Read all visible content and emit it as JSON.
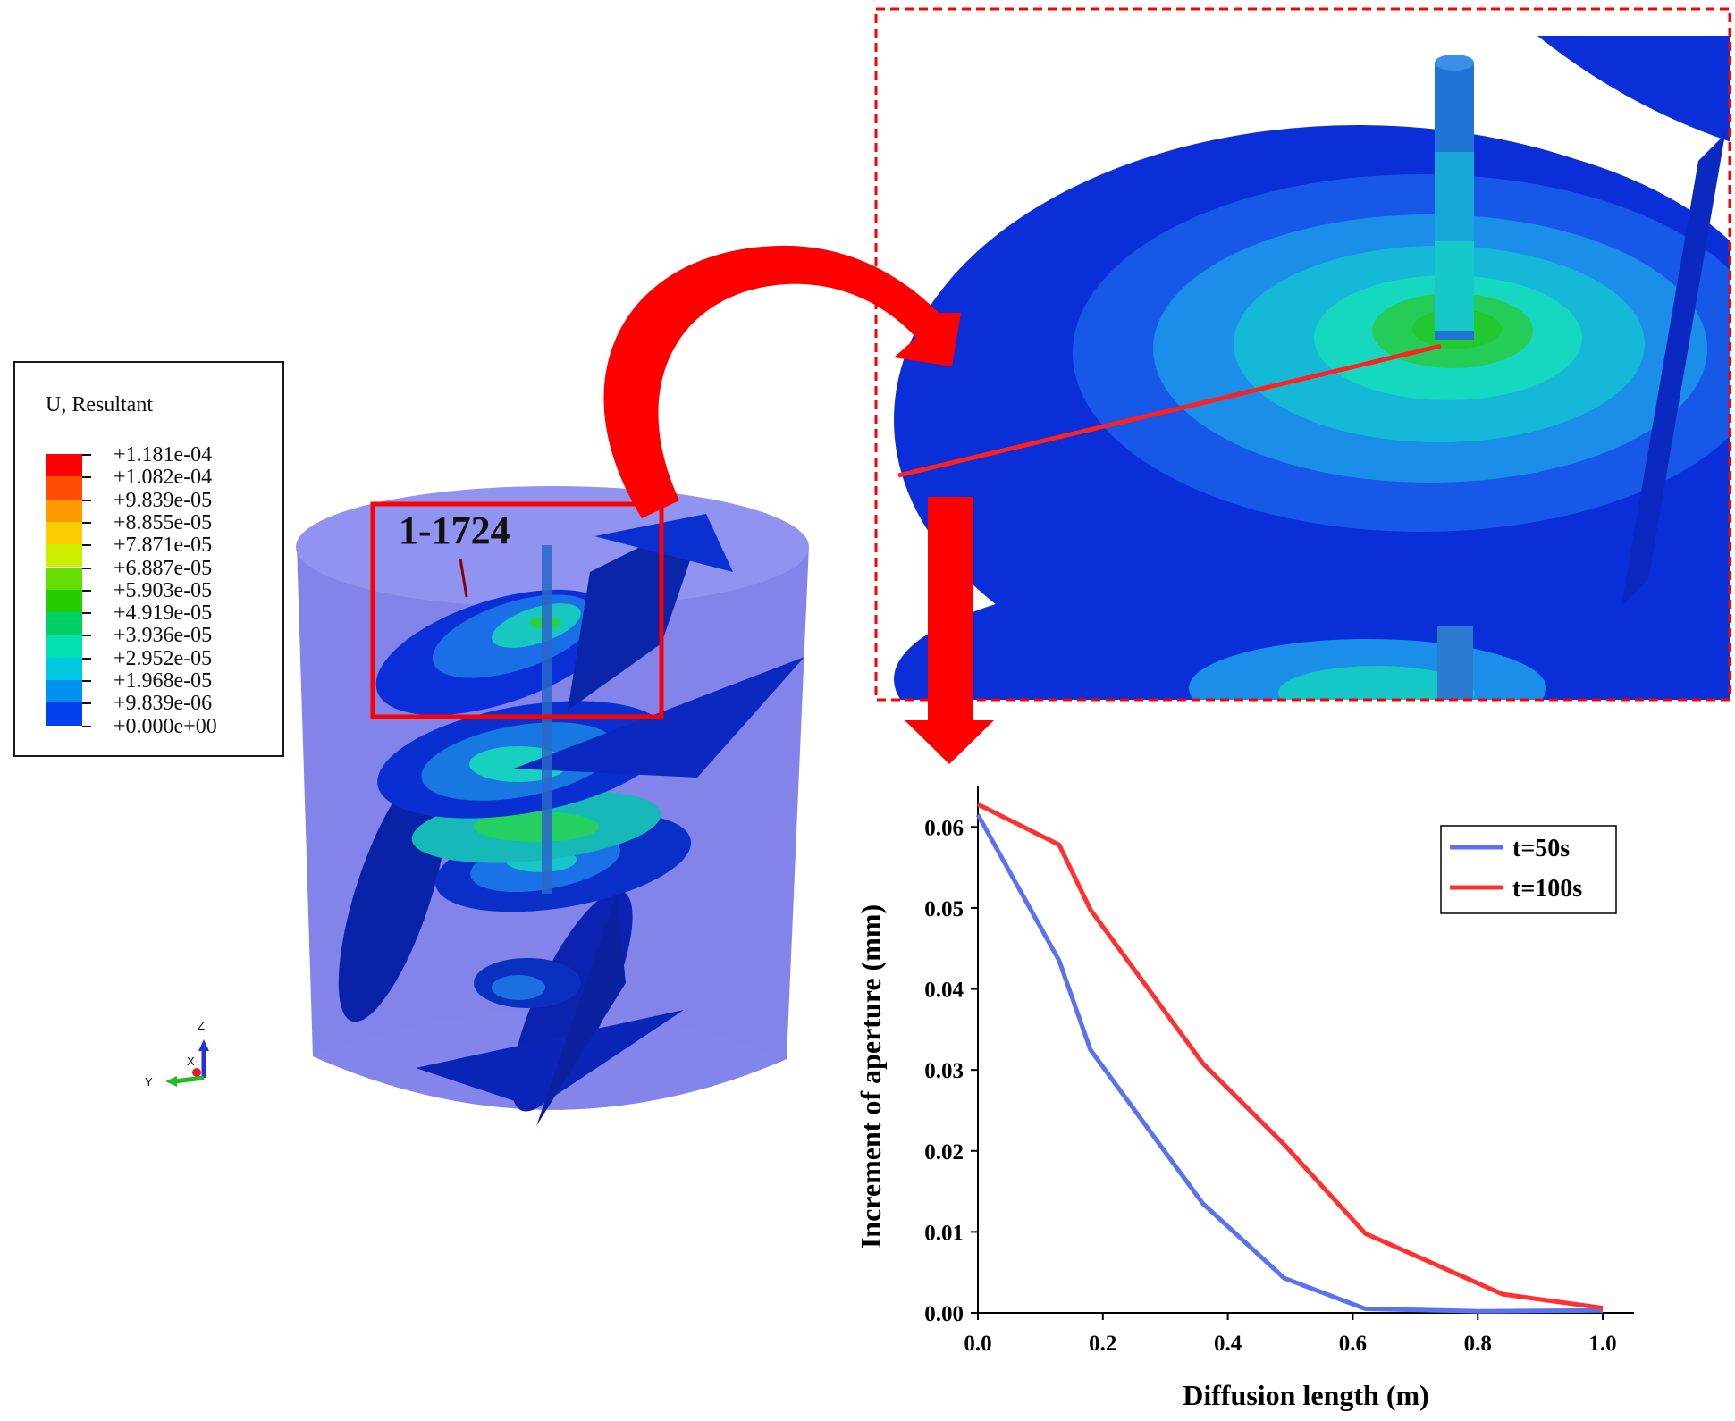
{
  "contour_legend": {
    "title": "U, Resultant",
    "levels": [
      {
        "value": "+1.181e-04",
        "color": "#ff0000"
      },
      {
        "value": "+1.082e-04",
        "color": "#ff4d00"
      },
      {
        "value": "+9.839e-05",
        "color": "#ff9900"
      },
      {
        "value": "+8.855e-05",
        "color": "#ffcc00"
      },
      {
        "value": "+7.871e-05",
        "color": "#ccee00"
      },
      {
        "value": "+6.887e-05",
        "color": "#66dd00"
      },
      {
        "value": "+5.903e-05",
        "color": "#22cc00"
      },
      {
        "value": "+4.919e-05",
        "color": "#00d060"
      },
      {
        "value": "+3.936e-05",
        "color": "#00e0b0"
      },
      {
        "value": "+2.952e-05",
        "color": "#00c8e0"
      },
      {
        "value": "+1.968e-05",
        "color": "#0090ee"
      },
      {
        "value": "+9.839e-06",
        "color": "#0040ee"
      },
      {
        "value": "+0.000e+00",
        "color": "#0000cc"
      }
    ]
  },
  "model": {
    "fracture_label": "1-1724",
    "axis_labels": {
      "z": "Z",
      "y": "Y",
      "x": "X"
    }
  },
  "highlight_color": "#ff0000",
  "chart_data": {
    "type": "line",
    "xlabel": "Diffusion length (m)",
    "ylabel": "Increment of aperture (mm)",
    "xlim": [
      0.0,
      1.05
    ],
    "ylim": [
      0.0,
      0.065
    ],
    "xticks": [
      "0.0",
      "0.2",
      "0.4",
      "0.6",
      "0.8",
      "1.0"
    ],
    "yticks": [
      "0.00",
      "0.01",
      "0.02",
      "0.03",
      "0.04",
      "0.05",
      "0.06"
    ],
    "grid": false,
    "legend_position": "top-right",
    "series": [
      {
        "name": "t=50s",
        "color": "#5b72f0",
        "x": [
          0.0,
          0.13,
          0.18,
          0.36,
          0.49,
          0.62,
          0.8,
          1.0
        ],
        "y": [
          0.0615,
          0.0435,
          0.0325,
          0.0135,
          0.0043,
          0.0005,
          0.0002,
          0.0003
        ]
      },
      {
        "name": "t=100s",
        "color": "#ff3030",
        "x": [
          0.0,
          0.13,
          0.18,
          0.36,
          0.49,
          0.62,
          0.84,
          1.0
        ],
        "y": [
          0.0628,
          0.0578,
          0.0498,
          0.0308,
          0.0208,
          0.0098,
          0.0023,
          0.0006
        ]
      }
    ]
  }
}
